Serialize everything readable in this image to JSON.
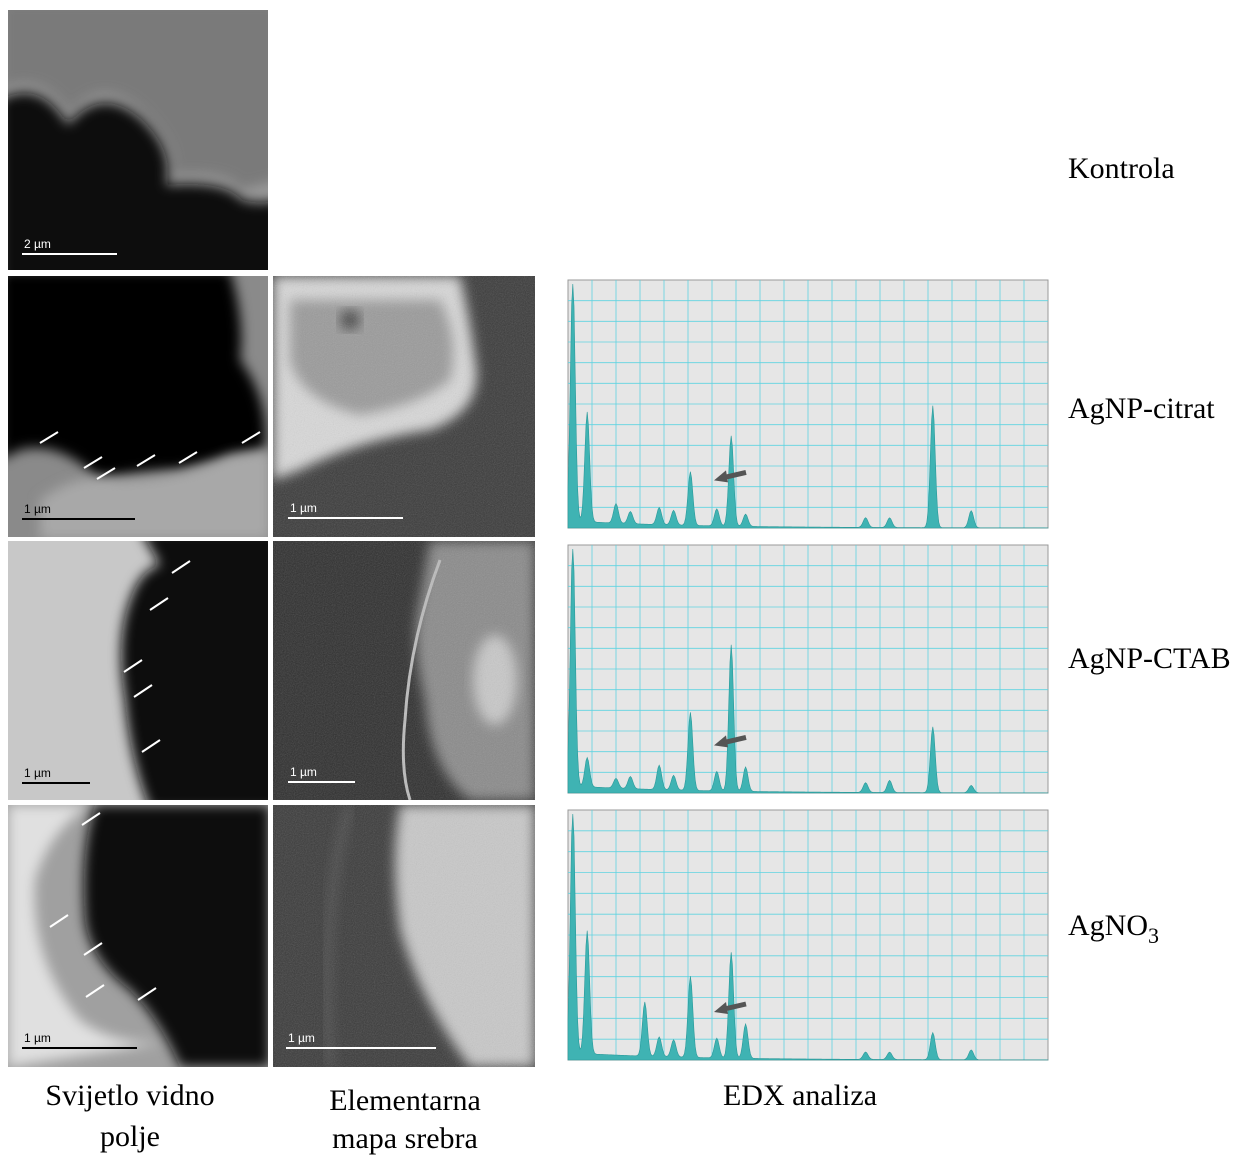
{
  "rows": [
    {
      "label": "Kontrola",
      "scale_bar": "2 µm"
    },
    {
      "label": "AgNP-citrat",
      "scale_bar": "1 µm",
      "map_scale_bar": "1 µm"
    },
    {
      "label": "AgNP-CTAB",
      "scale_bar": "1 µm",
      "map_scale_bar": "1 µm"
    },
    {
      "label": {
        "main": "AgNO",
        "sub": "3"
      },
      "scale_bar": "1 µm",
      "map_scale_bar": "1 µm"
    }
  ],
  "columns": [
    {
      "lines": [
        "Svijetlo vidno",
        "polje"
      ]
    },
    {
      "lines": [
        "Elementarna",
        "mapa srebra"
      ]
    },
    {
      "lines": [
        "EDX analiza"
      ]
    }
  ]
}
